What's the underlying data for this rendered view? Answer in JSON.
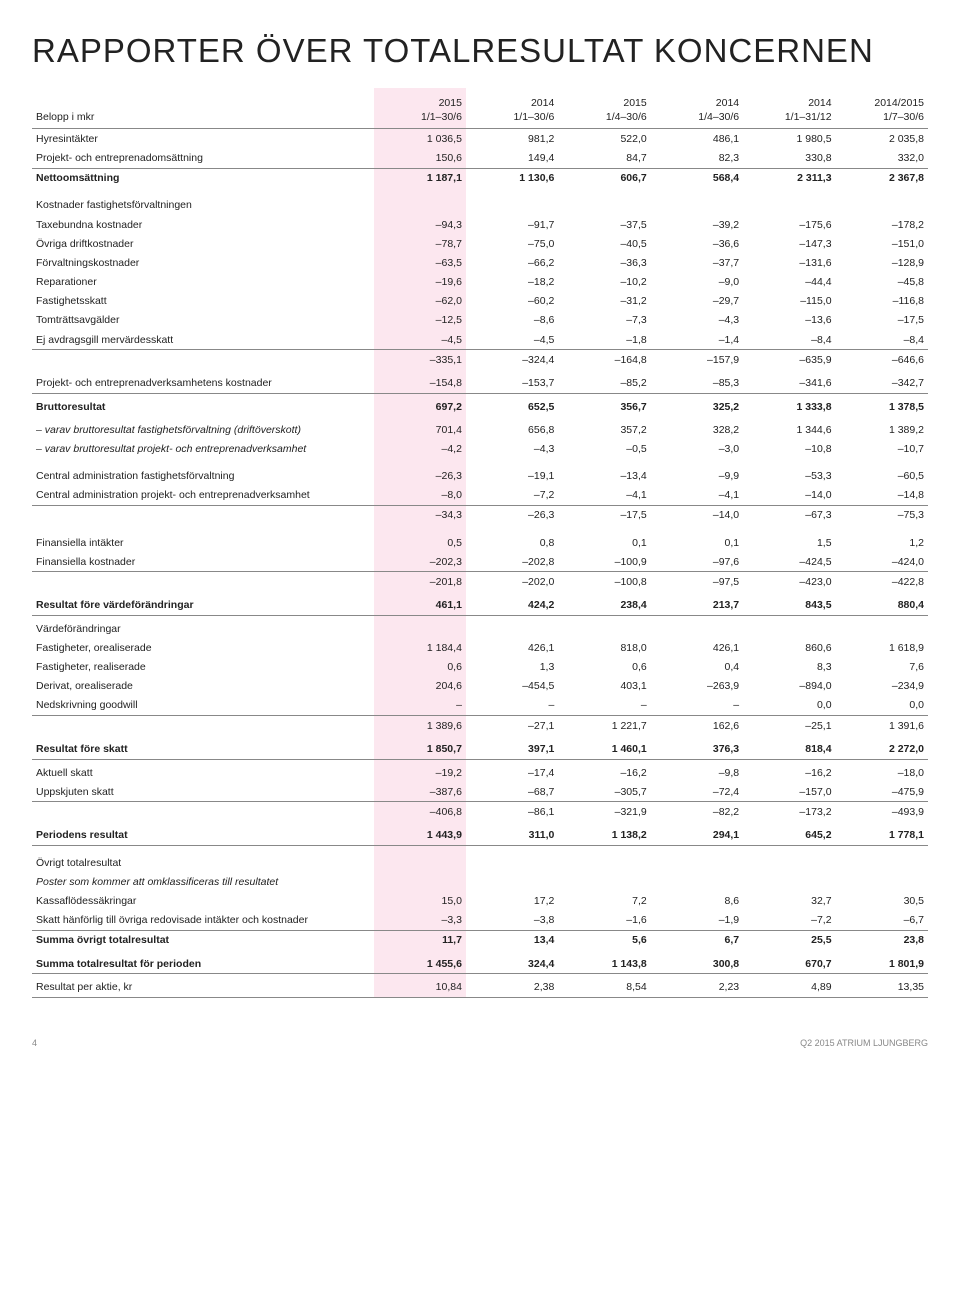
{
  "title": "RAPPORTER ÖVER TOTALRESULTAT KONCERNEN",
  "colors": {
    "highlight_bg": "#fce7ef",
    "rule": "#888888",
    "text": "#222222"
  },
  "header": {
    "belopp": "Belopp i mkr",
    "years": [
      "2015",
      "2014",
      "2015",
      "2014",
      "2014",
      "2014/2015"
    ],
    "periods": [
      "1/1–30/6",
      "1/1–30/6",
      "1/4–30/6",
      "1/4–30/6",
      "1/1–31/12",
      "1/7–30/6"
    ]
  },
  "rows": [
    {
      "l": "Hyresintäkter",
      "v": [
        "1 036,5",
        "981,2",
        "522,0",
        "486,1",
        "1 980,5",
        "2 035,8"
      ]
    },
    {
      "l": "Projekt- och entreprenadomsättning",
      "v": [
        "150,6",
        "149,4",
        "84,7",
        "82,3",
        "330,8",
        "332,0"
      ],
      "rule": true
    },
    {
      "l": "Nettoomsättning",
      "v": [
        "1 187,1",
        "1 130,6",
        "606,7",
        "568,4",
        "2 311,3",
        "2 367,8"
      ],
      "bold": true
    },
    {
      "sp": true
    },
    {
      "l": "Kostnader fastighetsförvaltningen",
      "v": [
        "",
        "",
        "",
        "",
        "",
        ""
      ]
    },
    {
      "l": "Taxebundna kostnader",
      "v": [
        "–94,3",
        "–91,7",
        "–37,5",
        "–39,2",
        "–175,6",
        "–178,2"
      ]
    },
    {
      "l": "Övriga driftkostnader",
      "v": [
        "–78,7",
        "–75,0",
        "–40,5",
        "–36,6",
        "–147,3",
        "–151,0"
      ]
    },
    {
      "l": "Förvaltningskostnader",
      "v": [
        "–63,5",
        "–66,2",
        "–36,3",
        "–37,7",
        "–131,6",
        "–128,9"
      ]
    },
    {
      "l": "Reparationer",
      "v": [
        "–19,6",
        "–18,2",
        "–10,2",
        "–9,0",
        "–44,4",
        "–45,8"
      ]
    },
    {
      "l": "Fastighetsskatt",
      "v": [
        "–62,0",
        "–60,2",
        "–31,2",
        "–29,7",
        "–115,0",
        "–116,8"
      ]
    },
    {
      "l": "Tomträttsavgälder",
      "v": [
        "–12,5",
        "–8,6",
        "–7,3",
        "–4,3",
        "–13,6",
        "–17,5"
      ]
    },
    {
      "l": "Ej avdragsgill mervärdesskatt",
      "v": [
        "–4,5",
        "–4,5",
        "–1,8",
        "–1,4",
        "–8,4",
        "–8,4"
      ],
      "rule": true
    },
    {
      "l": "",
      "v": [
        "–335,1",
        "–324,4",
        "–164,8",
        "–157,9",
        "–635,9",
        "–646,6"
      ]
    },
    {
      "sp": "s"
    },
    {
      "l": "Projekt- och entreprenadverksamhetens kostnader",
      "v": [
        "–154,8",
        "–153,7",
        "–85,2",
        "–85,3",
        "–341,6",
        "–342,7"
      ],
      "rule": true
    },
    {
      "sp": "s"
    },
    {
      "l": "Bruttoresultat",
      "v": [
        "697,2",
        "652,5",
        "356,7",
        "325,2",
        "1 333,8",
        "1 378,5"
      ],
      "bold": true
    },
    {
      "sp": "s"
    },
    {
      "l": "– varav bruttoresultat fastighetsförvaltning (driftöverskott)",
      "v": [
        "701,4",
        "656,8",
        "357,2",
        "328,2",
        "1 344,6",
        "1 389,2"
      ],
      "ital": true
    },
    {
      "l": "– varav bruttoresultat projekt- och entreprenadverksamhet",
      "v": [
        "–4,2",
        "–4,3",
        "–0,5",
        "–3,0",
        "–10,8",
        "–10,7"
      ],
      "ital": true
    },
    {
      "sp": true
    },
    {
      "l": "Central administration fastighetsförvaltning",
      "v": [
        "–26,3",
        "–19,1",
        "–13,4",
        "–9,9",
        "–53,3",
        "–60,5"
      ]
    },
    {
      "l": "Central administration projekt- och entreprenadverksamhet",
      "v": [
        "–8,0",
        "–7,2",
        "–4,1",
        "–4,1",
        "–14,0",
        "–14,8"
      ],
      "rule": true
    },
    {
      "l": "",
      "v": [
        "–34,3",
        "–26,3",
        "–17,5",
        "–14,0",
        "–67,3",
        "–75,3"
      ]
    },
    {
      "sp": true
    },
    {
      "l": "Finansiella intäkter",
      "v": [
        "0,5",
        "0,8",
        "0,1",
        "0,1",
        "1,5",
        "1,2"
      ]
    },
    {
      "l": "Finansiella kostnader",
      "v": [
        "–202,3",
        "–202,8",
        "–100,9",
        "–97,6",
        "–424,5",
        "–424,0"
      ],
      "rule": true
    },
    {
      "l": "",
      "v": [
        "–201,8",
        "–202,0",
        "–100,8",
        "–97,5",
        "–423,0",
        "–422,8"
      ]
    },
    {
      "sp": "s"
    },
    {
      "l": "Resultat före värdeförändringar",
      "v": [
        "461,1",
        "424,2",
        "238,4",
        "213,7",
        "843,5",
        "880,4"
      ],
      "bold": true,
      "rule": true
    },
    {
      "sp": "s"
    },
    {
      "l": "Värdeförändringar",
      "v": [
        "",
        "",
        "",
        "",
        "",
        ""
      ]
    },
    {
      "l": "Fastigheter, orealiserade",
      "v": [
        "1 184,4",
        "426,1",
        "818,0",
        "426,1",
        "860,6",
        "1 618,9"
      ]
    },
    {
      "l": "Fastigheter, realiserade",
      "v": [
        "0,6",
        "1,3",
        "0,6",
        "0,4",
        "8,3",
        "7,6"
      ]
    },
    {
      "l": "Derivat, orealiserade",
      "v": [
        "204,6",
        "–454,5",
        "403,1",
        "–263,9",
        "–894,0",
        "–234,9"
      ]
    },
    {
      "l": "Nedskrivning goodwill",
      "v": [
        "–",
        "–",
        "–",
        "–",
        "0,0",
        "0,0"
      ],
      "rule": true
    },
    {
      "l": "",
      "v": [
        "1 389,6",
        "–27,1",
        "1 221,7",
        "162,6",
        "–25,1",
        "1 391,6"
      ]
    },
    {
      "sp": "s"
    },
    {
      "l": "Resultat före skatt",
      "v": [
        "1 850,7",
        "397,1",
        "1 460,1",
        "376,3",
        "818,4",
        "2 272,0"
      ],
      "bold": true,
      "rule": true
    },
    {
      "sp": "s"
    },
    {
      "l": "Aktuell skatt",
      "v": [
        "–19,2",
        "–17,4",
        "–16,2",
        "–9,8",
        "–16,2",
        "–18,0"
      ]
    },
    {
      "l": "Uppskjuten skatt",
      "v": [
        "–387,6",
        "–68,7",
        "–305,7",
        "–72,4",
        "–157,0",
        "–475,9"
      ],
      "rule": true
    },
    {
      "l": "",
      "v": [
        "–406,8",
        "–86,1",
        "–321,9",
        "–82,2",
        "–173,2",
        "–493,9"
      ]
    },
    {
      "sp": "s"
    },
    {
      "l": "Periodens resultat",
      "v": [
        "1 443,9",
        "311,0",
        "1 138,2",
        "294,1",
        "645,2",
        "1 778,1"
      ],
      "bold": true,
      "rule": true
    },
    {
      "sp": true
    },
    {
      "l": "Övrigt totalresultat",
      "v": [
        "",
        "",
        "",
        "",
        "",
        ""
      ]
    },
    {
      "l": "Poster som kommer att omklassificeras till resultatet",
      "v": [
        "",
        "",
        "",
        "",
        "",
        ""
      ],
      "italAll": true
    },
    {
      "l": "Kassaflödessäkringar",
      "v": [
        "15,0",
        "17,2",
        "7,2",
        "8,6",
        "32,7",
        "30,5"
      ]
    },
    {
      "l": "Skatt hänförlig till övriga redovisade intäkter och kostnader",
      "v": [
        "–3,3",
        "–3,8",
        "–1,6",
        "–1,9",
        "–7,2",
        "–6,7"
      ],
      "rule": true
    },
    {
      "l": "Summa övrigt totalresultat",
      "v": [
        "11,7",
        "13,4",
        "5,6",
        "6,7",
        "25,5",
        "23,8"
      ],
      "bold": true
    },
    {
      "sp": "s"
    },
    {
      "l": "Summa totalresultat för perioden",
      "v": [
        "1 455,6",
        "324,4",
        "1 143,8",
        "300,8",
        "670,7",
        "1 801,9"
      ],
      "bold": true,
      "rule": true
    },
    {
      "sp": "s"
    },
    {
      "l": "Resultat per aktie, kr",
      "v": [
        "10,84",
        "2,38",
        "8,54",
        "2,23",
        "4,89",
        "13,35"
      ],
      "rule": true
    }
  ],
  "footer": {
    "page": "4",
    "doc": "Q2 2015 ATRIUM LJUNGBERG"
  }
}
